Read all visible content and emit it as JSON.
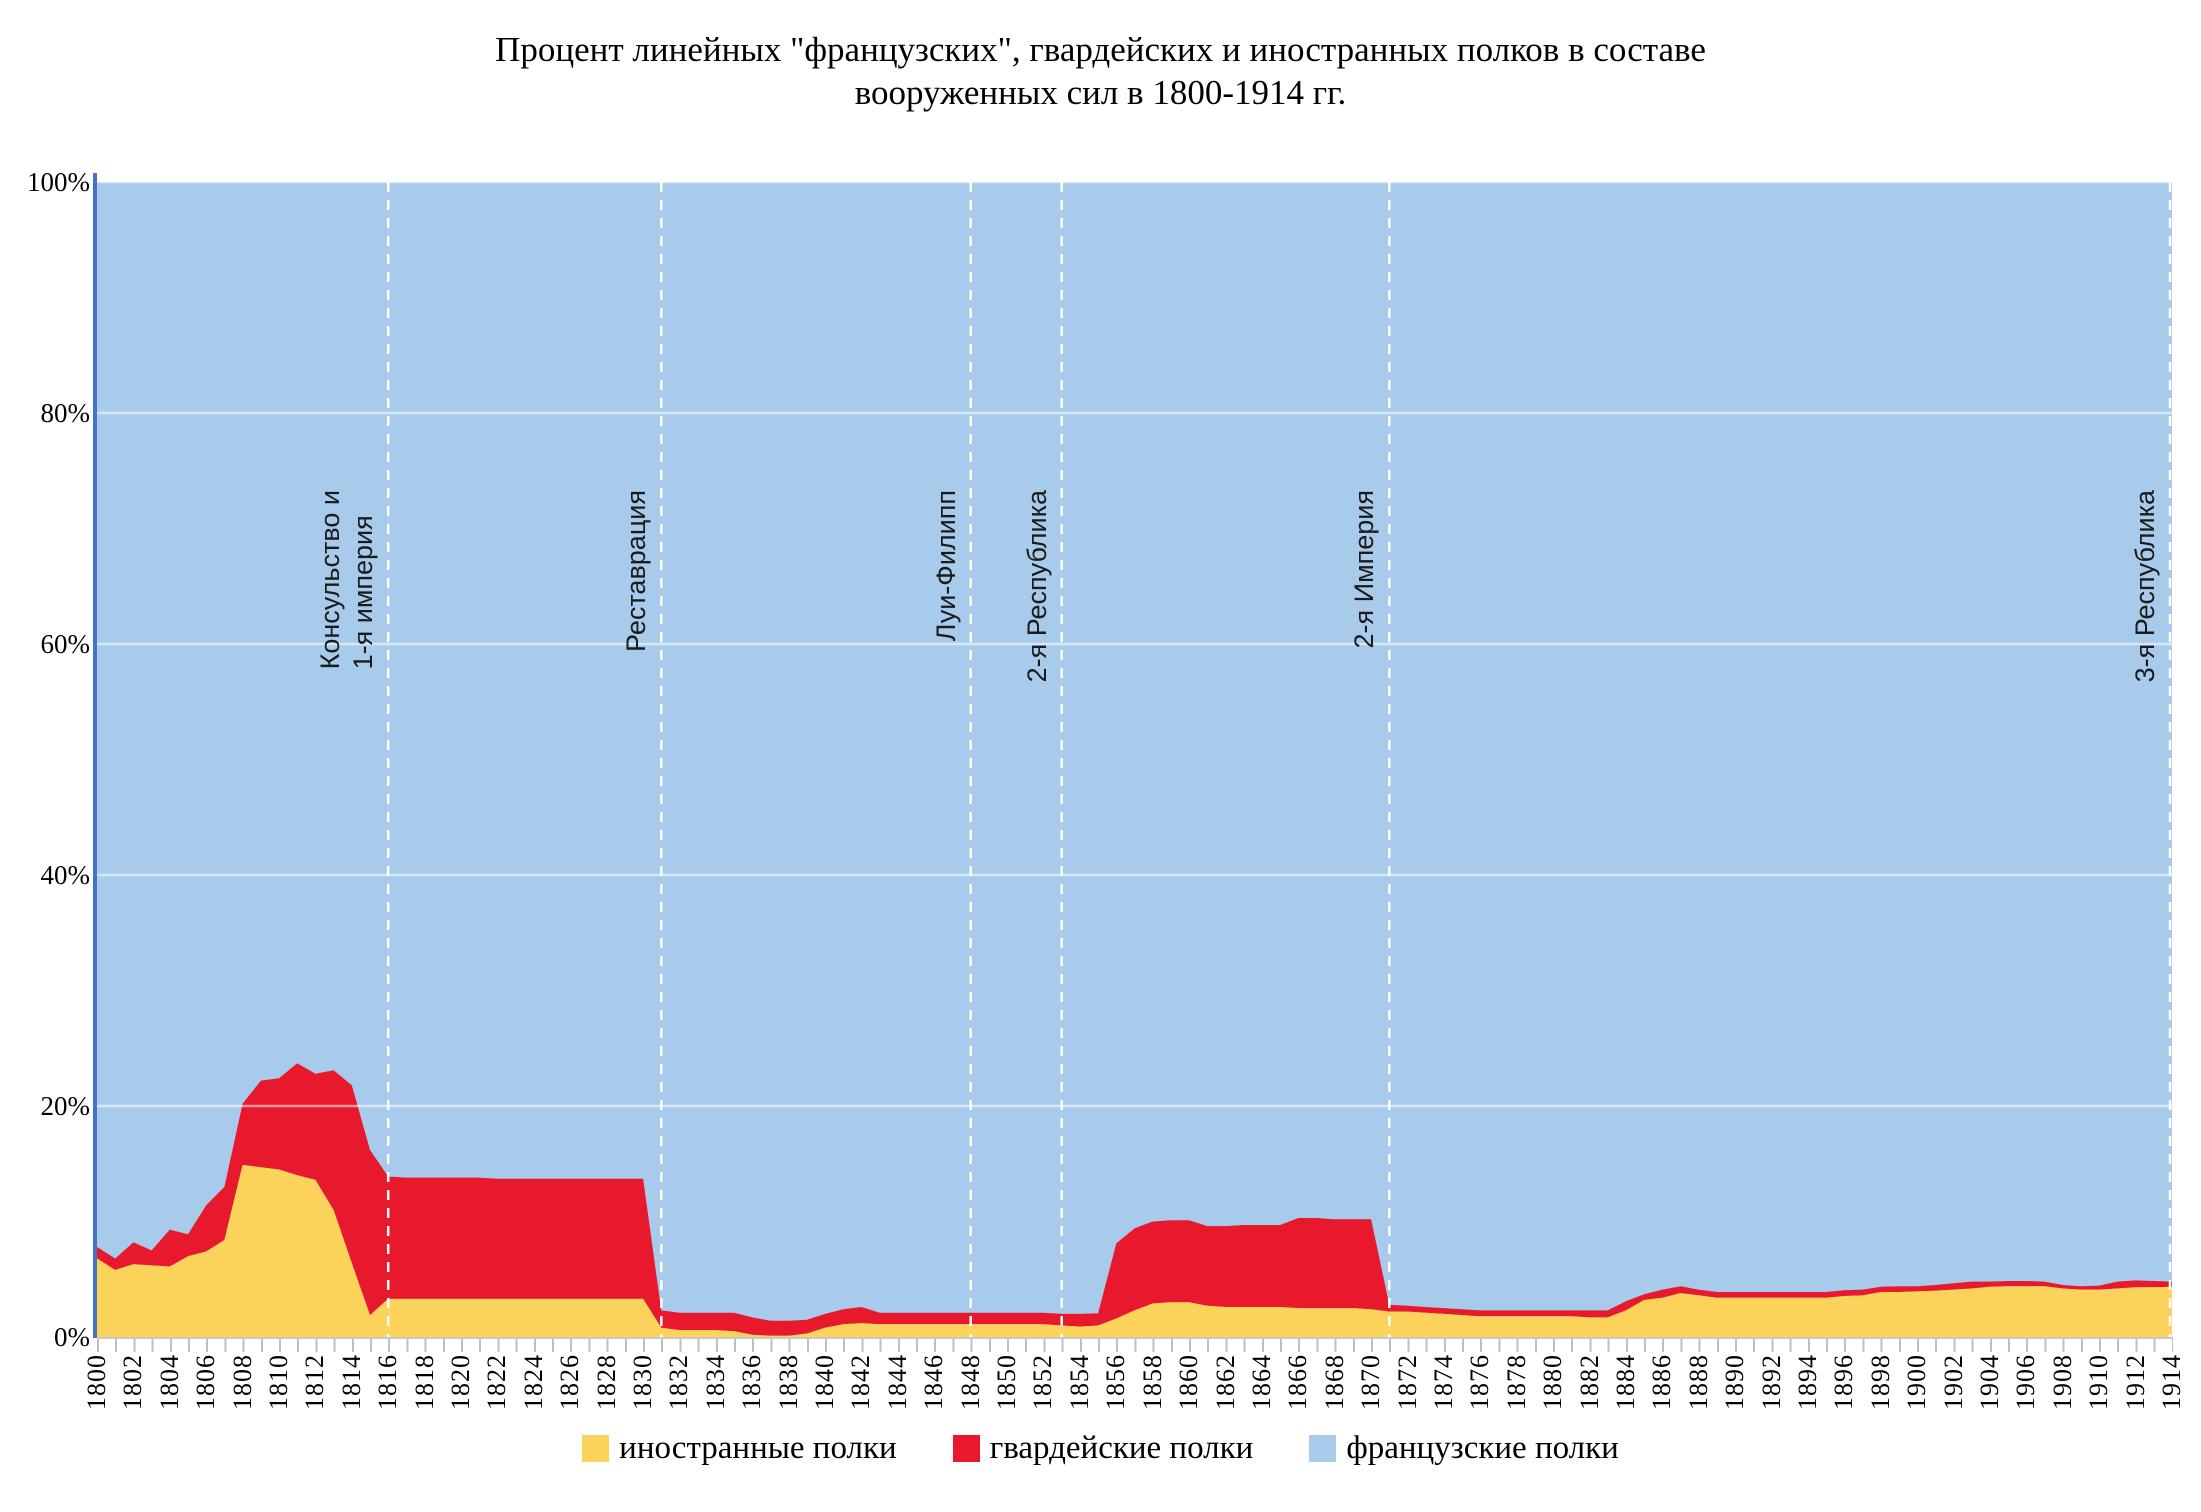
{
  "title": {
    "line1": "Процент линейных \"французских\", гвардейских и иностранных полков в составе",
    "line2": "вооруженных сил в 1800-1914 гг."
  },
  "y_axis": {
    "ticks": [
      "100%",
      "80%",
      "60%",
      "40%",
      "20%",
      "0%"
    ]
  },
  "x_axis": {
    "tick_labels": [
      "1800",
      "1802",
      "1804",
      "1806",
      "1808",
      "1810",
      "1812",
      "1814",
      "1816",
      "1818",
      "1820",
      "1822",
      "1824",
      "1826",
      "1828",
      "1830",
      "1832",
      "1834",
      "1836",
      "1838",
      "1840",
      "1842",
      "1844",
      "1846",
      "1848",
      "1850",
      "1852",
      "1854",
      "1856",
      "1858",
      "1860",
      "1862",
      "1864",
      "1866",
      "1868",
      "1870",
      "1872",
      "1874",
      "1876",
      "1878",
      "1880",
      "1882",
      "1884",
      "1886",
      "1888",
      "1890",
      "1892",
      "1894",
      "1896",
      "1898",
      "1900",
      "1902",
      "1904",
      "1906",
      "1908",
      "1910",
      "1912",
      "1914"
    ]
  },
  "legend": [
    {
      "label": "иностранные полки",
      "color": "#fbd35b"
    },
    {
      "label": "гвардейские полки",
      "color": "#e8192c"
    },
    {
      "label": "французские полки",
      "color": "#a8cbec"
    }
  ],
  "annotations": [
    {
      "year": 1816,
      "lines": [
        "Консульство и",
        "1-я империя"
      ]
    },
    {
      "year": 1831,
      "lines": [
        "Реставрация"
      ]
    },
    {
      "year": 1848,
      "lines": [
        "Луи-Филипп"
      ]
    },
    {
      "year": 1853,
      "lines": [
        "2-я Республика"
      ]
    },
    {
      "year": 1871,
      "lines": [
        "2-я Империя"
      ]
    },
    {
      "year": 1914,
      "lines": [
        "3-я Республика"
      ]
    }
  ],
  "chart_data": {
    "type": "area",
    "stacked": true,
    "title": "Процент линейных \"французских\", гвардейских и иностранных полков в составе вооруженных сил в 1800-1914 гг.",
    "x_start": 1800,
    "x_end": 1914,
    "x_step": 1,
    "ylim": [
      0,
      100
    ],
    "y_unit": "%",
    "grid": "horizontal, every 20%, drawn over areas",
    "legend_position": "bottom",
    "series": [
      {
        "name": "иностранные полки",
        "color": "#fbd35b",
        "values": [
          6.8,
          5.8,
          6.3,
          6.2,
          6.1,
          7.0,
          7.4,
          8.4,
          14.9,
          14.7,
          14.5,
          14.0,
          13.6,
          11.0,
          6.4,
          1.9,
          3.3,
          3.3,
          3.3,
          3.3,
          3.3,
          3.3,
          3.3,
          3.3,
          3.3,
          3.3,
          3.3,
          3.3,
          3.3,
          3.3,
          3.3,
          0.8,
          0.6,
          0.6,
          0.6,
          0.5,
          0.2,
          0.1,
          0.1,
          0.3,
          0.8,
          1.1,
          1.2,
          1.1,
          1.1,
          1.1,
          1.1,
          1.1,
          1.1,
          1.1,
          1.1,
          1.1,
          1.1,
          1.0,
          0.9,
          1.0,
          1.6,
          2.3,
          2.9,
          3.0,
          3.0,
          2.7,
          2.6,
          2.6,
          2.6,
          2.6,
          2.5,
          2.5,
          2.5,
          2.5,
          2.4,
          2.2,
          2.2,
          2.1,
          2.0,
          1.9,
          1.8,
          1.8,
          1.8,
          1.8,
          1.8,
          1.8,
          1.7,
          1.7,
          2.3,
          3.2,
          3.4,
          3.8,
          3.6,
          3.4,
          3.4,
          3.4,
          3.4,
          3.4,
          3.4,
          3.4,
          3.55,
          3.6,
          3.9,
          3.9,
          3.95,
          4.0,
          4.1,
          4.2,
          4.35,
          4.4,
          4.4,
          4.4,
          4.2,
          4.1,
          4.1,
          4.2,
          4.3,
          4.3,
          4.35
        ]
      },
      {
        "name": "гвардейские полки",
        "color": "#e8192c",
        "values": [
          1.0,
          1.0,
          1.9,
          1.3,
          3.2,
          1.9,
          4.0,
          4.6,
          5.3,
          7.5,
          7.9,
          9.7,
          9.2,
          12.1,
          15.4,
          14.3,
          10.6,
          10.5,
          10.5,
          10.5,
          10.5,
          10.5,
          10.4,
          10.4,
          10.4,
          10.4,
          10.4,
          10.4,
          10.4,
          10.4,
          10.4,
          1.5,
          1.5,
          1.5,
          1.5,
          1.6,
          1.5,
          1.3,
          1.3,
          1.2,
          1.2,
          1.3,
          1.4,
          1.0,
          1.0,
          1.0,
          1.0,
          1.0,
          1.0,
          1.0,
          1.0,
          1.0,
          1.0,
          1.0,
          1.1,
          1.05,
          6.5,
          7.1,
          7.1,
          7.1,
          7.1,
          6.9,
          7.0,
          7.1,
          7.1,
          7.1,
          7.8,
          7.8,
          7.7,
          7.7,
          7.8,
          0.6,
          0.5,
          0.5,
          0.5,
          0.5,
          0.5,
          0.5,
          0.5,
          0.5,
          0.5,
          0.5,
          0.6,
          0.6,
          0.8,
          0.5,
          0.7,
          0.6,
          0.5,
          0.5,
          0.5,
          0.5,
          0.5,
          0.5,
          0.5,
          0.5,
          0.5,
          0.5,
          0.45,
          0.5,
          0.45,
          0.5,
          0.55,
          0.6,
          0.45,
          0.45,
          0.45,
          0.4,
          0.3,
          0.3,
          0.35,
          0.6,
          0.6,
          0.55,
          0.45
        ]
      },
      {
        "name": "французские полки",
        "color": "#a8cbec",
        "values_rule": "100 - иностранные - гвардейские (fills chart to 100%)"
      }
    ]
  },
  "colors": {
    "foreign": "#fbd35b",
    "guard": "#e8192c",
    "french": "#a8cbec",
    "y_axis_line": "#4472c4",
    "tick": "#bfbfbf",
    "gridline_over_areas": "rgba(255,255,255,0.55)",
    "event_dash_line": "#ffffff"
  }
}
